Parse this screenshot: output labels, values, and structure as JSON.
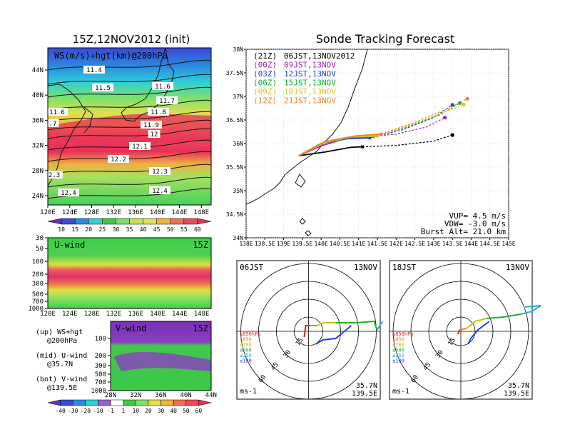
{
  "left_panel": {
    "title": "15Z,12NOV2012 (init)",
    "ws_map": {
      "label": "WS(m/s)+hgt(km)@200hPa",
      "lon_ticks": [
        "120E",
        "124E",
        "128E",
        "132E",
        "136E",
        "140E",
        "144E",
        "148E"
      ],
      "lat_ticks": [
        "24N",
        "28N",
        "32N",
        "36N",
        "40N",
        "44N"
      ],
      "height_labels": [
        "11.4",
        "11.5",
        "11.6",
        "11.7",
        "11.6",
        "11.8",
        ".7",
        "11.9",
        "12",
        "12.1",
        "12.2",
        "12.3",
        "2.3",
        "12.4",
        "12.4"
      ]
    },
    "ws_colorbar": {
      "ticks": [
        "10",
        "15",
        "20",
        "25",
        "30",
        "35",
        "40",
        "45",
        "50",
        "55",
        "60"
      ],
      "colors": [
        "#6a2fc0",
        "#3a49d8",
        "#2a8be0",
        "#2ed0d8",
        "#3ec84a",
        "#7ee06a",
        "#c8e050",
        "#e0e050",
        "#f2b040",
        "#f07050",
        "#f0485a",
        "#e8305a"
      ]
    },
    "u_wind": {
      "label": "U-wind",
      "time": "15Z",
      "pressure_ticks": [
        "30",
        "50",
        "100",
        "200",
        "300",
        "500",
        "700",
        "1000"
      ],
      "lon_ticks": [
        "120E",
        "124E",
        "128E",
        "132E",
        "136E",
        "140E",
        "144E",
        "148E"
      ]
    },
    "legend": {
      "up_1": "(up) WS+hgt",
      "up_2": "@200hPa",
      "mid_1": "(mid) U-wind",
      "mid_2": "@35.7N",
      "bot_1": "(bot) V-wind",
      "bot_2": "@139.5E"
    },
    "v_wind": {
      "label": "V-wind",
      "time": "15Z",
      "pressure_ticks": [
        "100",
        "200",
        "300",
        "500",
        "700",
        "1000"
      ],
      "lat_ticks": [
        "28N",
        "32N",
        "36N",
        "40N",
        "44N"
      ]
    },
    "wind_colorbar": {
      "ticks": [
        "-40",
        "-30",
        "-20",
        "-10",
        "-1",
        "1",
        "10",
        "20",
        "30",
        "40",
        "50",
        "60"
      ],
      "colors": [
        "#6a2fc0",
        "#3a49d8",
        "#2a8be0",
        "#2ed0d8",
        "#9a60d0",
        "#ffffff",
        "#3ec84a",
        "#7ee06a",
        "#e0e050",
        "#f2b040",
        "#f07050",
        "#f0485a",
        "#e8305a"
      ]
    }
  },
  "right_panel": {
    "title": "Sonde Tracking Forecast",
    "track_map": {
      "lon_ticks": [
        "138E",
        "138.5E",
        "139E",
        "139.5E",
        "140E",
        "140.5E",
        "141E",
        "141.5E",
        "142E",
        "142.5E",
        "143E",
        "143.5E",
        "144E",
        "144.5E",
        "145E"
      ],
      "lat_ticks": [
        "34N",
        "34.5N",
        "35N",
        "35.5N",
        "36N",
        "36.5N",
        "37N",
        "37.5N",
        "38N"
      ],
      "legend": [
        {
          "code": "(21Z)",
          "time": "06JST,13NOV2012",
          "color": "#000000"
        },
        {
          "code": "(00Z)",
          "time": "09JST,13NOV",
          "color": "#a020c0"
        },
        {
          "code": "(03Z)",
          "time": "12JST,13NOV",
          "color": "#2040e0"
        },
        {
          "code": "(06Z)",
          "time": "15JST,13NOV",
          "color": "#10b030"
        },
        {
          "code": "(09Z)",
          "time": "18JST,13NOV",
          "color": "#e0c020"
        },
        {
          "code": "(12Z)",
          "time": "21JST,13NOV",
          "color": "#f08020"
        }
      ],
      "params": {
        "vup": "VUP= 4.5 m/s",
        "vdw": "VDW= -3.0 m/s",
        "burst": "Burst Alt= 21.0 km"
      }
    },
    "polar_panels": [
      {
        "time": "06JST",
        "date": "13NOV",
        "lat": "35.7N",
        "lon": "139.5E",
        "unit": "ms-1",
        "ring_labels": [
          "15",
          "30",
          "45",
          "60"
        ],
        "level_legend": [
          {
            "text": "≥850hPa",
            "color": "#e02020"
          },
          {
            "text": "≤850",
            "color": "#f08020"
          },
          {
            "text": "≤700",
            "color": "#d0c000"
          },
          {
            "text": "≤500",
            "color": "#20b020"
          },
          {
            "text": "≤250",
            "color": "#20b0d0"
          },
          {
            "text": "≤100",
            "color": "#2040e0"
          }
        ]
      },
      {
        "time": "18JST",
        "date": "13NOV",
        "lat": "35.7N",
        "lon": "139.5E",
        "unit": "ms-1",
        "ring_labels": [
          "15",
          "30",
          "45",
          "60"
        ],
        "level_legend": [
          {
            "text": "≥850hPa",
            "color": "#e02020"
          },
          {
            "text": "≤850",
            "color": "#f08020"
          },
          {
            "text": "≤700",
            "color": "#d0c000"
          },
          {
            "text": "≤500",
            "color": "#20b020"
          },
          {
            "text": "≤250",
            "color": "#20b0d0"
          },
          {
            "text": "≤100",
            "color": "#2040e0"
          }
        ]
      }
    ]
  },
  "chart_data": [
    {
      "type": "line",
      "title": "Sonde Tracking Forecast",
      "xlim": [
        138,
        145
      ],
      "ylim": [
        34,
        38
      ],
      "series": [
        {
          "name": "(21Z) 06JST,13NOV2012",
          "x": [
            139.4,
            140.1,
            140.8,
            141.1,
            142.0,
            143.0,
            143.5
          ],
          "y": [
            35.74,
            35.82,
            35.92,
            35.93,
            35.96,
            36.05,
            36.18
          ]
        },
        {
          "name": "(00Z) 09JST,13NOV",
          "x": [
            139.4,
            140.0,
            140.7,
            141.2,
            142.0,
            142.8,
            143.3
          ],
          "y": [
            35.74,
            35.95,
            36.12,
            36.14,
            36.2,
            36.35,
            36.55
          ]
        },
        {
          "name": "(03Z) 12JST,13NOV",
          "x": [
            139.4,
            140.0,
            140.7,
            141.3,
            142.2,
            143.0,
            143.5
          ],
          "y": [
            35.74,
            36.0,
            36.1,
            36.12,
            36.3,
            36.55,
            36.82
          ]
        },
        {
          "name": "(06Z) 15JST,13NOV",
          "x": [
            139.4,
            140.0,
            140.8,
            141.4,
            142.3,
            143.2,
            143.7
          ],
          "y": [
            35.74,
            36.0,
            36.13,
            36.15,
            36.35,
            36.62,
            36.86
          ]
        },
        {
          "name": "(09Z) 18JST,13NOV",
          "x": [
            139.4,
            140.1,
            140.8,
            141.5,
            142.4,
            143.3,
            143.8
          ],
          "y": [
            35.74,
            36.02,
            36.14,
            36.16,
            36.4,
            36.67,
            36.83
          ]
        },
        {
          "name": "(12Z) 21JST,13NOV",
          "x": [
            139.4,
            140.1,
            140.9,
            141.6,
            142.5,
            143.4,
            143.9
          ],
          "y": [
            35.74,
            36.04,
            36.16,
            36.2,
            36.45,
            36.75,
            36.95
          ]
        }
      ]
    }
  ]
}
